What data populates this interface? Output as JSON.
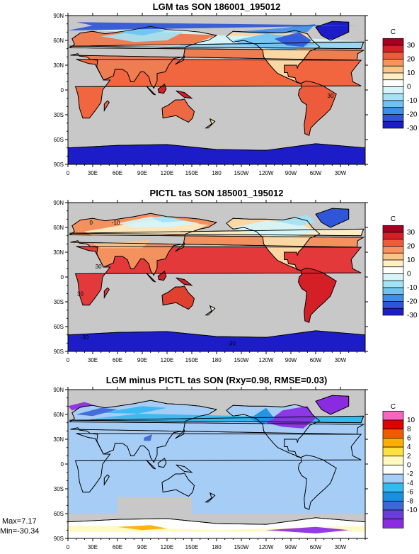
{
  "chart_data": [
    {
      "type": "heatmap",
      "title": "LGM tas SON 186001_195012",
      "units": "C",
      "lat_ticks": [
        "90N",
        "60N",
        "30N",
        "0",
        "30S",
        "60S",
        "90S"
      ],
      "lon_ticks": [
        "0",
        "30E",
        "60E",
        "90E",
        "120E",
        "150E",
        "180",
        "150W",
        "120W",
        "90W",
        "60W",
        "30W"
      ],
      "colorbar_labels": [
        "30",
        "20",
        "10",
        "0",
        "-10",
        "-20",
        "-30"
      ],
      "colors": [
        "#a50021",
        "#d41f26",
        "#ef5a3c",
        "#f7935e",
        "#fbc58a",
        "#fdeec3",
        "#ffffff",
        "#d5f5fb",
        "#a3e3f6",
        "#6ec3f3",
        "#3f8ee8",
        "#2f55d8",
        "#1c1cc8"
      ],
      "contour_labels": [
        "30"
      ]
    },
    {
      "type": "heatmap",
      "title": "PICTL tas SON 185001_195012",
      "units": "C",
      "lat_ticks": [
        "90N",
        "60N",
        "30N",
        "0",
        "30S",
        "60S",
        "90S"
      ],
      "lon_ticks": [
        "0",
        "30E",
        "60E",
        "90E",
        "120E",
        "150E",
        "180",
        "150W",
        "120W",
        "90W",
        "60W",
        "30W"
      ],
      "colorbar_labels": [
        "30",
        "20",
        "10",
        "0",
        "-10",
        "-20",
        "-30"
      ],
      "colors": [
        "#a50021",
        "#d41f26",
        "#ef5a3c",
        "#f7935e",
        "#fbc58a",
        "#fdeec3",
        "#ffffff",
        "#d5f5fb",
        "#a3e3f6",
        "#6ec3f3",
        "#3f8ee8",
        "#2f55d8",
        "#1c1cc8"
      ],
      "contour_labels": [
        "0",
        "-10",
        "30",
        "30",
        "-30",
        "-30"
      ]
    },
    {
      "type": "heatmap",
      "title": "LGM minus PICTL tas SON (Rxy=0.98, RMSE=0.03)",
      "units": "C",
      "lat_ticks": [
        "90N",
        "60N",
        "30N",
        "0",
        "30S",
        "60S",
        "90S"
      ],
      "lon_ticks": [
        "0",
        "30E",
        "60E",
        "90E",
        "120E",
        "150E",
        "180",
        "150W",
        "120W",
        "90W",
        "60W",
        "30W"
      ],
      "colorbar_labels": [
        "10",
        "8",
        "6",
        "4",
        "2",
        "0",
        "-2",
        "-4",
        "-6",
        "-8",
        "-10"
      ],
      "colors": [
        "#f466c0",
        "#e00000",
        "#f25a00",
        "#ffad00",
        "#ffe040",
        "#fff9bf",
        "#ffffff",
        "#a6cdf6",
        "#34b9f0",
        "#1a8fe0",
        "#3d66d8",
        "#6a3cd8",
        "#8a2be2"
      ],
      "stats": {
        "max": "Max=7.17",
        "min": "Min=-30.34"
      }
    }
  ]
}
